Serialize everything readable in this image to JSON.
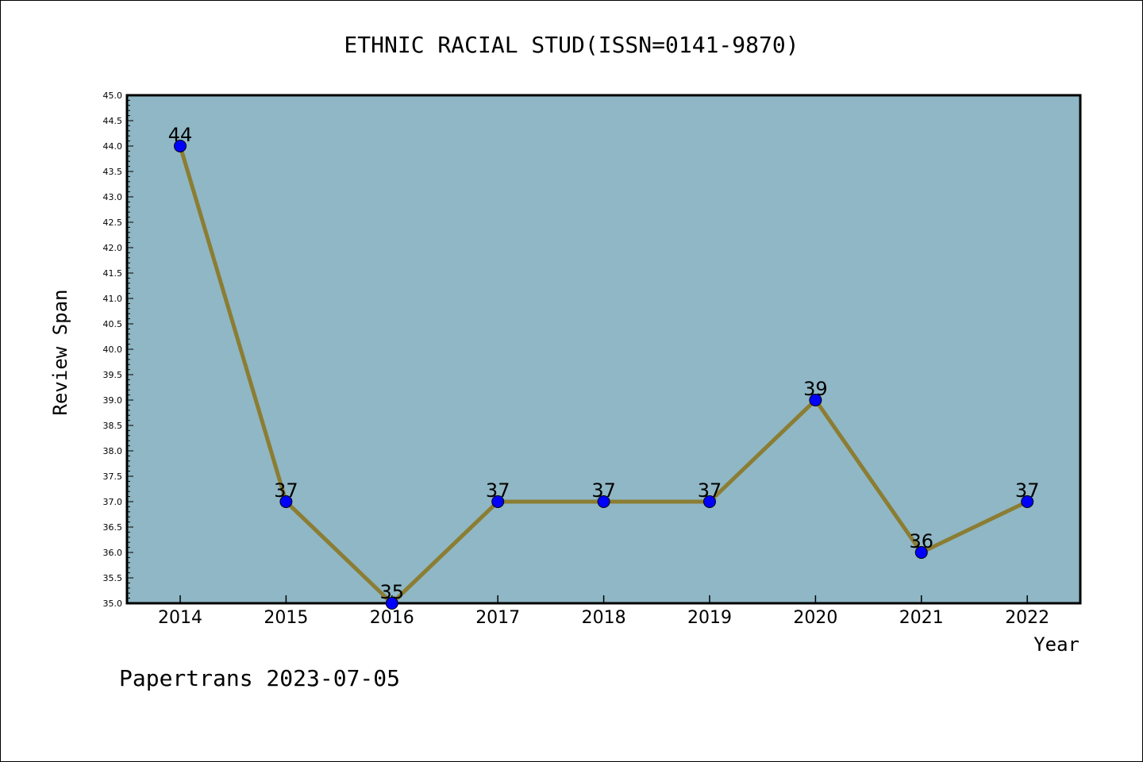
{
  "chart_data": {
    "type": "line",
    "title": "ETHNIC RACIAL STUD(ISSN=0141-9870)",
    "xlabel": "Year",
    "ylabel": "Review Span",
    "categories": [
      "2014",
      "2015",
      "2016",
      "2017",
      "2018",
      "2019",
      "2020",
      "2021",
      "2022"
    ],
    "series": [
      {
        "values": [
          44,
          37,
          35,
          37,
          37,
          37,
          39,
          36,
          37
        ]
      }
    ],
    "ylim": [
      35.0,
      45.0
    ],
    "ytick_step": 0.5,
    "plot_background": "#8fb7c5",
    "line_color": "#8b7d33",
    "marker_color": "#0000ff",
    "grid": false,
    "data_labels": true
  },
  "footer": "Papertrans 2023-07-05"
}
